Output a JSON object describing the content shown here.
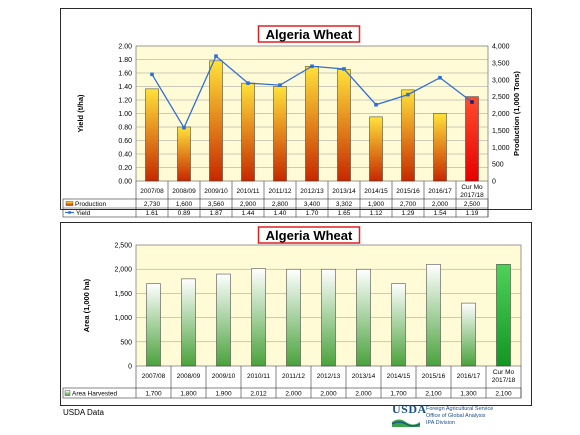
{
  "chart_data": [
    {
      "type": "bar",
      "title": "Algeria Wheat",
      "categories": [
        "2007/08",
        "2008/09",
        "2009/10",
        "2010/11",
        "2011/12",
        "2012/13",
        "2013/14",
        "2014/15",
        "2015/16",
        "2016/17",
        "Cur Mo 2017/18"
      ],
      "series": [
        {
          "name": "Production",
          "type": "bar",
          "axis": "right",
          "values": [
            2730,
            1600,
            3560,
            2900,
            2800,
            3400,
            3302,
            1900,
            2700,
            2000,
            2500
          ],
          "labels": [
            "2,730",
            "1,600",
            "3,560",
            "2,900",
            "2,800",
            "3,400",
            "3,302",
            "1,900",
            "2,700",
            "2,000",
            "2,500"
          ]
        },
        {
          "name": "Yield",
          "type": "line",
          "axis": "left",
          "values": [
            1.61,
            0.89,
            1.87,
            1.44,
            1.4,
            1.7,
            1.65,
            1.12,
            1.29,
            1.54,
            1.19
          ],
          "labels": [
            "1.61",
            "0.89",
            "1.87",
            "1.44",
            "1.40",
            "1.70",
            "1.65",
            "1.12",
            "1.29",
            "1.54",
            "1.19"
          ],
          "line_y": [
            1.58,
            0.79,
            1.85,
            1.45,
            1.42,
            1.7,
            1.66,
            1.13,
            1.28,
            1.53,
            1.17
          ]
        }
      ],
      "ylabel": "Yield (t/ha)",
      "y2label": "Production (1,000 Tons)",
      "ylim": [
        0,
        2
      ],
      "y2lim": [
        0,
        4000
      ],
      "yticks": [
        "2.00",
        "1.80",
        "1.60",
        "1.40",
        "1.20",
        "1.00",
        "0.80",
        "0.60",
        "0.40",
        "0.20",
        "0.00"
      ],
      "y2ticks": [
        "4,000",
        "3,500",
        "3,000",
        "2,500",
        "2,000",
        "1,500",
        "1,000",
        "500",
        "0"
      ],
      "grid": true
    },
    {
      "type": "bar",
      "title": "Algeria Wheat",
      "categories": [
        "2007/08",
        "2008/09",
        "2009/10",
        "2010/11",
        "2011/12",
        "2012/13",
        "2013/14",
        "2014/15",
        "2015/16",
        "2016/17",
        "Cur Mo 2017/18"
      ],
      "series": [
        {
          "name": "Area Harvested",
          "values": [
            1700,
            1800,
            1900,
            2012,
            2000,
            2000,
            2000,
            1700,
            2100,
            1300,
            2100
          ],
          "labels": [
            "1,700",
            "1,800",
            "1,900",
            "2,012",
            "2,000",
            "2,000",
            "2,000",
            "1,700",
            "2,100",
            "1,300",
            "2,100"
          ]
        }
      ],
      "ylabel": "Area (1,000 ha)",
      "ylim": [
        0,
        2500
      ],
      "yticks": [
        "2,500",
        "2,000",
        "1,500",
        "1,000",
        "500",
        "0"
      ],
      "grid": true
    }
  ],
  "footer": {
    "source_note": "USDA Data",
    "logo_text": "USDA",
    "agency_lines": [
      "Foreign Agricultural Service",
      "Office of Global Analysis",
      "IPA Division"
    ]
  },
  "colors": {
    "plot_bg": "#fffbd6",
    "bar_top_production": "#ffe23a",
    "bar_bottom_production": "#c62800",
    "bar_last_production": "#e60000",
    "bar_top_area": "#ffffff",
    "bar_bottom_area": "#4aa23c",
    "bar_last_area": "#139622",
    "yield_line": "#2e6fd6",
    "title_border": "#e02020"
  }
}
